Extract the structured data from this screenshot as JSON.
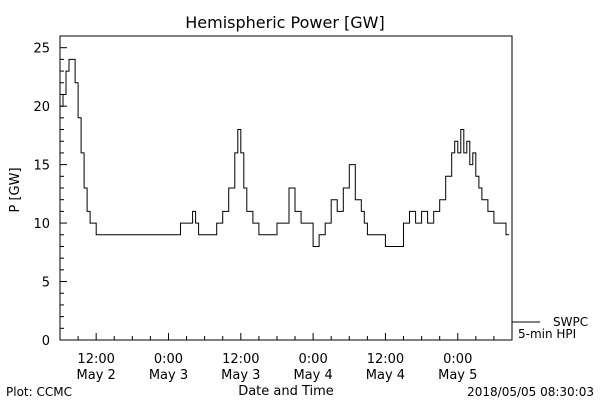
{
  "chart_data": {
    "type": "line",
    "title": "Hemispheric Power [GW]",
    "ylabel": "P [GW]",
    "xlabel": "Date and Time",
    "ylim": [
      0,
      26
    ],
    "xlim": [
      "2018-05-02T06:00",
      "2018-05-05T09:00"
    ],
    "y_ticks": [
      0,
      5,
      10,
      15,
      20,
      25
    ],
    "x_ticks": [
      {
        "t": "2018-05-02T12:00",
        "time": "12:00",
        "date": "May 2"
      },
      {
        "t": "2018-05-03T00:00",
        "time": "0:00",
        "date": "May 3"
      },
      {
        "t": "2018-05-03T12:00",
        "time": "12:00",
        "date": "May 3"
      },
      {
        "t": "2018-05-04T00:00",
        "time": "0:00",
        "date": "May 4"
      },
      {
        "t": "2018-05-04T12:00",
        "time": "12:00",
        "date": "May 4"
      },
      {
        "t": "2018-05-05T00:00",
        "time": "0:00",
        "date": "May 5"
      }
    ],
    "legend": {
      "placement": "bottom-right",
      "entries": [
        "SWPC",
        "5-min HPI"
      ]
    },
    "series": [
      {
        "name": "SWPC",
        "x": [
          "2018-05-02T06:00",
          "2018-05-02T06:30",
          "2018-05-02T07:00",
          "2018-05-02T07:30",
          "2018-05-02T08:00",
          "2018-05-02T08:30",
          "2018-05-02T09:00",
          "2018-05-02T09:30",
          "2018-05-02T10:00",
          "2018-05-02T10:30",
          "2018-05-02T11:00",
          "2018-05-02T12:00",
          "2018-05-02T15:00",
          "2018-05-02T18:00",
          "2018-05-02T21:00",
          "2018-05-03T00:00",
          "2018-05-03T02:00",
          "2018-05-03T04:00",
          "2018-05-03T04:30",
          "2018-05-03T05:00",
          "2018-05-03T06:00",
          "2018-05-03T08:00",
          "2018-05-03T09:00",
          "2018-05-03T10:00",
          "2018-05-03T11:00",
          "2018-05-03T11:30",
          "2018-05-03T12:00",
          "2018-05-03T12:30",
          "2018-05-03T13:00",
          "2018-05-03T14:00",
          "2018-05-03T15:00",
          "2018-05-03T17:00",
          "2018-05-03T18:00",
          "2018-05-03T20:00",
          "2018-05-03T21:00",
          "2018-05-03T22:00",
          "2018-05-03T23:00",
          "2018-05-04T00:00",
          "2018-05-04T00:30",
          "2018-05-04T01:00",
          "2018-05-04T02:00",
          "2018-05-04T03:00",
          "2018-05-04T04:00",
          "2018-05-04T05:00",
          "2018-05-04T06:00",
          "2018-05-04T07:00",
          "2018-05-04T08:00",
          "2018-05-04T08:30",
          "2018-05-04T09:00",
          "2018-05-04T10:00",
          "2018-05-04T11:00",
          "2018-05-04T12:00",
          "2018-05-04T13:00",
          "2018-05-04T15:00",
          "2018-05-04T16:00",
          "2018-05-04T17:00",
          "2018-05-04T18:00",
          "2018-05-04T19:00",
          "2018-05-04T20:00",
          "2018-05-04T21:00",
          "2018-05-04T22:00",
          "2018-05-04T23:00",
          "2018-05-04T23:30",
          "2018-05-05T00:00",
          "2018-05-05T00:30",
          "2018-05-05T01:00",
          "2018-05-05T01:30",
          "2018-05-05T02:00",
          "2018-05-05T02:30",
          "2018-05-05T03:00",
          "2018-05-05T03:30",
          "2018-05-05T04:00",
          "2018-05-05T05:00",
          "2018-05-05T06:00",
          "2018-05-05T07:00",
          "2018-05-05T08:00",
          "2018-05-05T08:30"
        ],
        "y": [
          20,
          21,
          23,
          24,
          24,
          22,
          19,
          16,
          13,
          11,
          10,
          9,
          9,
          9,
          9,
          9,
          10,
          11,
          10,
          9,
          9,
          10,
          11,
          13,
          16,
          18,
          16,
          13,
          11,
          10,
          9,
          9,
          10,
          13,
          11,
          10,
          10,
          8,
          8,
          9,
          10,
          12,
          11,
          13,
          15,
          12,
          11,
          10,
          9,
          9,
          9,
          8,
          8,
          10,
          11,
          10,
          11,
          10,
          11,
          12,
          14,
          16,
          17,
          16,
          18,
          16,
          17,
          15,
          16,
          14,
          13,
          12,
          11,
          10,
          10,
          9,
          9
        ]
      },
      {
        "name": "5-min HPI",
        "x": [],
        "y": []
      }
    ]
  },
  "footer": {
    "left": "Plot: CCMC",
    "right": "2018/05/05 08:30:03"
  }
}
